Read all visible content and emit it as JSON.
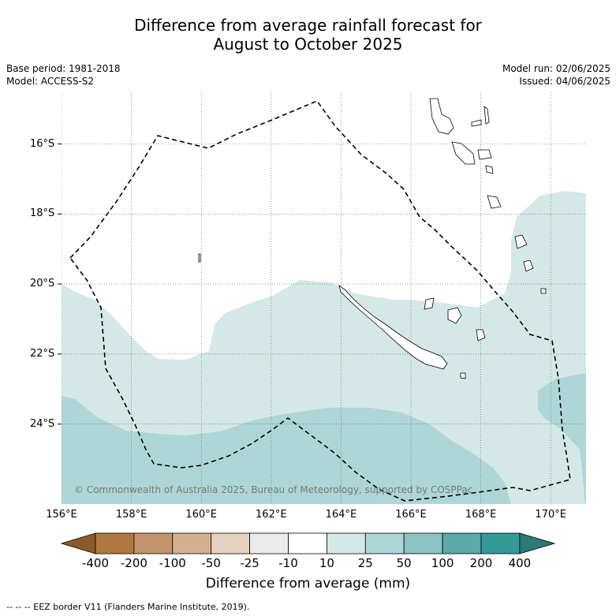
{
  "title": {
    "line1": "Difference from average rainfall forecast for",
    "line2": "August to October 2025"
  },
  "meta_left": {
    "base_period": "Base period: 1981-2018",
    "model": "Model: ACCESS-S2"
  },
  "meta_right": {
    "model_run": "Model run: 02/06/2025",
    "issued": "Issued: 04/06/2025"
  },
  "map": {
    "lat_labels": [
      "16°S",
      "18°S",
      "20°S",
      "22°S",
      "24°S"
    ],
    "lon_labels": [
      "156°E",
      "158°E",
      "160°E",
      "162°E",
      "164°E",
      "166°E",
      "168°E",
      "170°E"
    ],
    "copyright": "© Commonwealth of Australia 2025, Bureau of Meteorology, supported by COSPPac",
    "colors": {
      "band_10_25": "#d4e9e7",
      "band_25_50": "#aed6d6",
      "coastline": "#000000",
      "eez_border": "#000000"
    }
  },
  "colorbar": {
    "labels": [
      "-400",
      "-200",
      "-100",
      "-50",
      "-25",
      "-10",
      "10",
      "25",
      "50",
      "100",
      "200",
      "400"
    ],
    "colors": [
      "#8b5a2b",
      "#b07840",
      "#c4946a",
      "#d5b090",
      "#e7d2bf",
      "#ebebe9",
      "#ffffff",
      "#d4e9e7",
      "#aed6d6",
      "#8bc2c2",
      "#5ba9a9",
      "#339a96",
      "#2a7a77"
    ],
    "title": "Difference from average (mm)"
  },
  "footnote": "--  --  -- EEZ border V11 (Flanders Marine Institute, 2019)."
}
